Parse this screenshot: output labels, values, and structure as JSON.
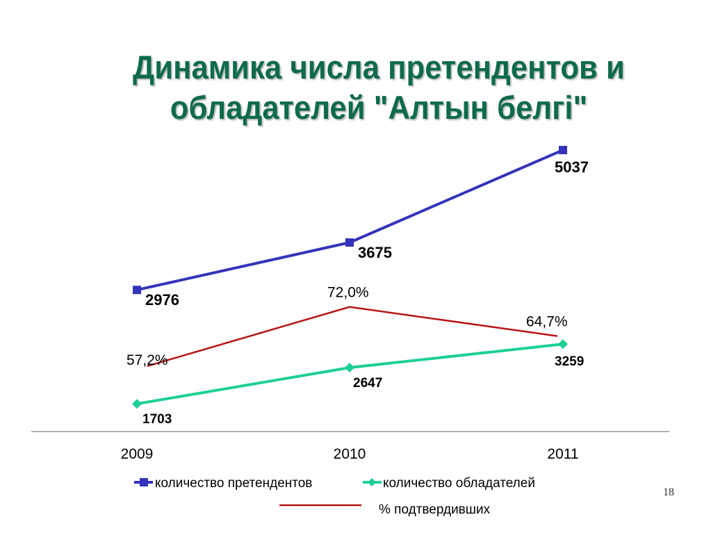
{
  "title": "Динамика числа претендентов и обладателей \"Алтын белгі\"",
  "page_number": "18",
  "chart_data": {
    "type": "line",
    "title": "Динамика числа претендентов и обладателей \"Алтын белгі\"",
    "categories": [
      "2009",
      "2010",
      "2011"
    ],
    "legend_position": "bottom",
    "grid": false,
    "series": [
      {
        "name": "количество претендентов",
        "values": [
          2976,
          3675,
          5037
        ],
        "labels": [
          "2976",
          "3675",
          "5037"
        ],
        "color": "#3333bb",
        "marker": "square",
        "ylim": [
          900,
          5200
        ]
      },
      {
        "name": "количество обладателей",
        "values": [
          1703,
          2647,
          3259
        ],
        "labels": [
          "1703",
          "2647",
          "3259"
        ],
        "color": "#1ccf98",
        "marker": "diamond",
        "ylim": [
          1000,
          8600
        ]
      },
      {
        "name": "% подтвердивших",
        "values": [
          57.2,
          72.0,
          64.7
        ],
        "labels": [
          "57,2%",
          "72,0%",
          "64,7%"
        ],
        "color": "#b81414",
        "marker": "none",
        "ylim": [
          41,
          114
        ]
      }
    ]
  }
}
